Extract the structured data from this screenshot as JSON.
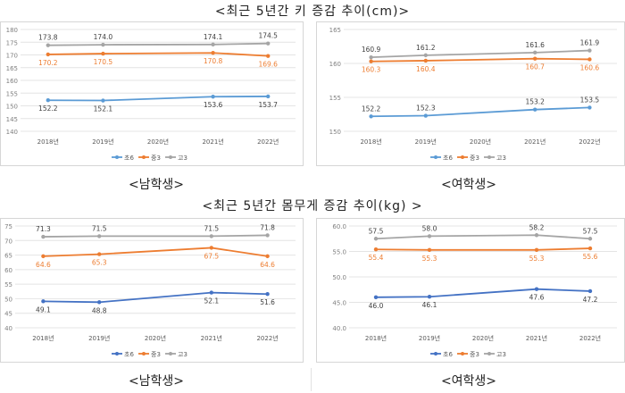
{
  "titles": {
    "height": "<최근 5년간 키 증감 추이(cm)>",
    "weight": "<최근 5년간 몸무게 증감 추이(kg) >"
  },
  "panel_labels": {
    "height_boys": "<남학생>",
    "height_girls": "<여학생>",
    "weight_boys": "<남학생>",
    "weight_girls": "<여학생>"
  },
  "colors": {
    "초6": "#5b9bd5",
    "중3": "#ed7d31",
    "고3": "#a5a5a5",
    "초6_weight": "#4472c4"
  },
  "chart_data": [
    {
      "type": "line",
      "panel": "height_boys",
      "categories": [
        "2018년",
        "2019년",
        "2020년",
        "2021년",
        "2022년"
      ],
      "ylim": [
        140,
        180
      ],
      "yticks": [
        "140",
        "145",
        "150",
        "155",
        "160",
        "165",
        "170",
        "175",
        "180"
      ],
      "legend": "bottom",
      "series": [
        {
          "name": "초6",
          "values": [
            152.2,
            152.1,
            null,
            153.6,
            153.7
          ],
          "labels": [
            "152.2",
            "152.1",
            "",
            "153.6",
            "153.7"
          ],
          "label_pos": "below"
        },
        {
          "name": "중3",
          "values": [
            170.2,
            170.5,
            null,
            170.8,
            169.6
          ],
          "labels": [
            "170.2",
            "170.5",
            "",
            "170.8",
            "169.6"
          ],
          "label_pos": "below"
        },
        {
          "name": "고3",
          "values": [
            173.8,
            174.0,
            null,
            174.1,
            174.5
          ],
          "labels": [
            "173.8",
            "174.0",
            "",
            "174.1",
            "174.5"
          ],
          "label_pos": "above"
        }
      ]
    },
    {
      "type": "line",
      "panel": "height_girls",
      "categories": [
        "2018년",
        "2019년",
        "2020년",
        "2021년",
        "2022년"
      ],
      "ylim": [
        150,
        165
      ],
      "yticks": [
        "150",
        "155",
        "160",
        "165"
      ],
      "legend": "bottom",
      "series": [
        {
          "name": "초6",
          "values": [
            152.2,
            152.3,
            null,
            153.2,
            153.5
          ],
          "labels": [
            "152.2",
            "152.3",
            "",
            "153.2",
            "153.5"
          ],
          "label_pos": "above"
        },
        {
          "name": "중3",
          "values": [
            160.3,
            160.4,
            null,
            160.7,
            160.6
          ],
          "labels": [
            "160.3",
            "160.4",
            "",
            "160.7",
            "160.6"
          ],
          "label_pos": "below"
        },
        {
          "name": "고3",
          "values": [
            160.9,
            161.2,
            null,
            161.6,
            161.9
          ],
          "labels": [
            "160.9",
            "161.2",
            "",
            "161.6",
            "161.9"
          ],
          "label_pos": "above"
        }
      ]
    },
    {
      "type": "line",
      "panel": "weight_boys",
      "categories": [
        "2018년",
        "2019년",
        "2020년",
        "2021년",
        "2022년"
      ],
      "ylim": [
        40,
        75
      ],
      "yticks": [
        "40",
        "45",
        "50",
        "55",
        "60",
        "65",
        "70",
        "75"
      ],
      "legend": "bottom",
      "series": [
        {
          "name": "초6",
          "values": [
            49.1,
            48.8,
            null,
            52.1,
            51.6
          ],
          "labels": [
            "49.1",
            "48.8",
            "",
            "52.1",
            "51.6"
          ],
          "label_pos": "below"
        },
        {
          "name": "중3",
          "values": [
            64.6,
            65.3,
            null,
            67.5,
            64.6
          ],
          "labels": [
            "64.6",
            "65.3",
            "",
            "67.5",
            "64.6"
          ],
          "label_pos": "below"
        },
        {
          "name": "고3",
          "values": [
            71.3,
            71.5,
            null,
            71.5,
            71.8
          ],
          "labels": [
            "71.3",
            "71.5",
            "",
            "71.5",
            "71.8"
          ],
          "label_pos": "above"
        }
      ]
    },
    {
      "type": "line",
      "panel": "weight_girls",
      "categories": [
        "2018년",
        "2019년",
        "2020년",
        "2021년",
        "2022년"
      ],
      "ylim": [
        40,
        60
      ],
      "yticks": [
        "40.0",
        "45.0",
        "50.0",
        "55.0",
        "60.0"
      ],
      "legend": "bottom",
      "series": [
        {
          "name": "초6",
          "values": [
            46.0,
            46.1,
            null,
            47.6,
            47.2
          ],
          "labels": [
            "46.0",
            "46.1",
            "",
            "47.6",
            "47.2"
          ],
          "label_pos": "below"
        },
        {
          "name": "중3",
          "values": [
            55.4,
            55.3,
            null,
            55.3,
            55.6
          ],
          "labels": [
            "55.4",
            "55.3",
            "",
            "55.3",
            "55.6"
          ],
          "label_pos": "below"
        },
        {
          "name": "고3",
          "values": [
            57.5,
            58.0,
            null,
            58.2,
            57.5
          ],
          "labels": [
            "57.5",
            "58.0",
            "",
            "58.2",
            "57.5"
          ],
          "label_pos": "above"
        }
      ]
    }
  ]
}
